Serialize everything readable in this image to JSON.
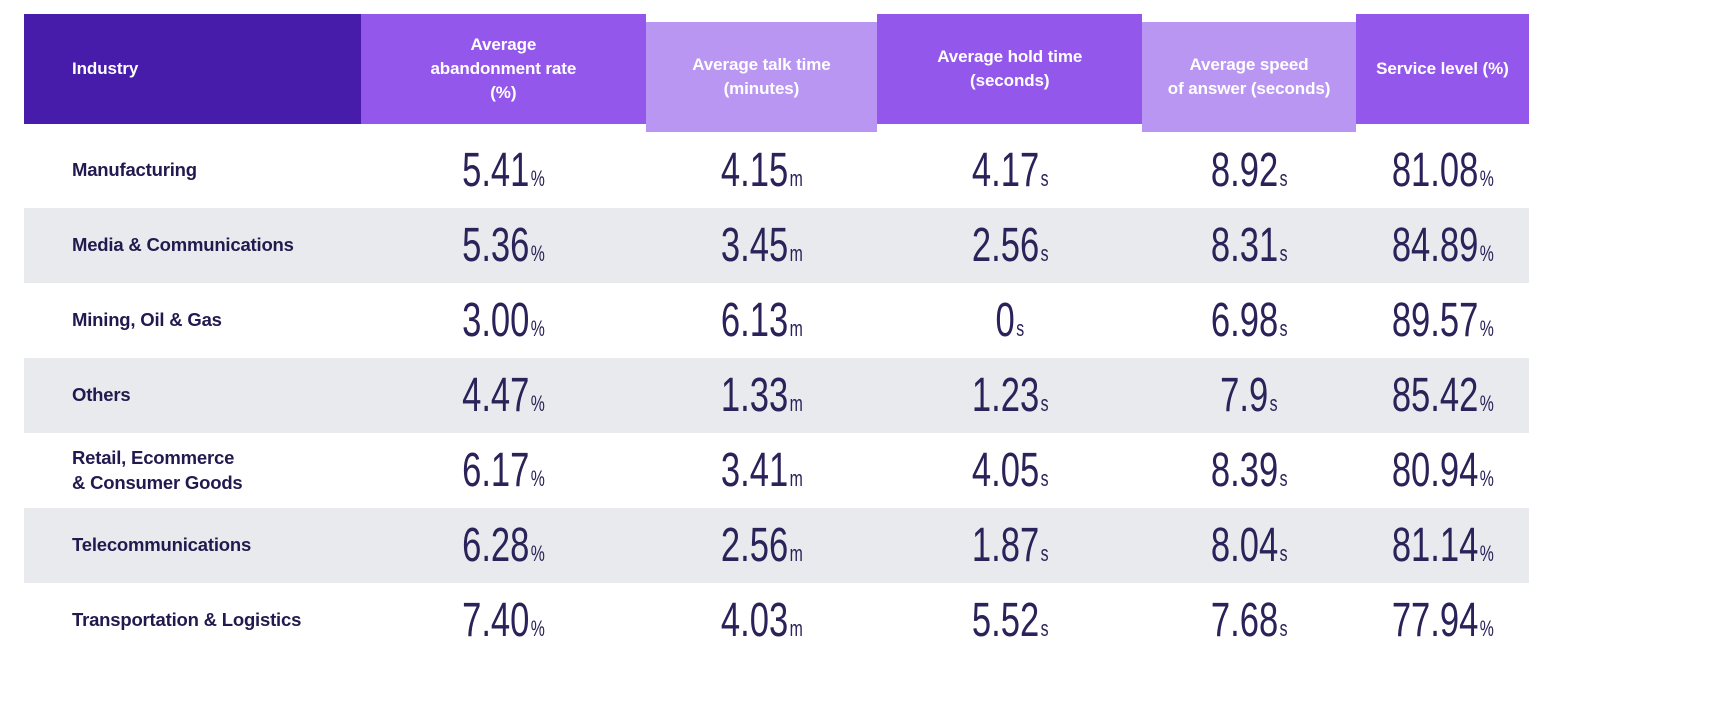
{
  "table": {
    "columns": [
      {
        "label": "Industry",
        "shade": "dark",
        "unit": ""
      },
      {
        "label": "Average\nabandonment rate\n(%)",
        "shade": "medium",
        "unit": "%"
      },
      {
        "label": "Average talk time\n(minutes)",
        "shade": "light",
        "unit": "m"
      },
      {
        "label": "Average hold time\n(seconds)",
        "shade": "medium",
        "unit": "s"
      },
      {
        "label": "Average speed\nof answer (seconds)",
        "shade": "light",
        "unit": "s"
      },
      {
        "label": "Service level (%)",
        "shade": "medium",
        "unit": "%"
      }
    ],
    "rows": [
      {
        "industry": "Manufacturing",
        "values": [
          "5.41",
          "4.15",
          "4.17",
          "8.92",
          "81.08"
        ]
      },
      {
        "industry": "Media & Communications",
        "values": [
          "5.36",
          "3.45",
          "2.56",
          "8.31",
          "84.89"
        ]
      },
      {
        "industry": "Mining, Oil & Gas",
        "values": [
          "3.00",
          "6.13",
          "0",
          "6.98",
          "89.57"
        ]
      },
      {
        "industry": "Others",
        "values": [
          "4.47",
          "1.33",
          "1.23",
          "7.9",
          "85.42"
        ]
      },
      {
        "industry": "Retail, Ecommerce\n& Consumer Goods",
        "values": [
          "6.17",
          "3.41",
          "4.05",
          "8.39",
          "80.94"
        ]
      },
      {
        "industry": "Telecommunications",
        "values": [
          "6.28",
          "2.56",
          "1.87",
          "8.04",
          "81.14"
        ]
      },
      {
        "industry": "Transportation & Logistics",
        "values": [
          "7.40",
          "4.03",
          "5.52",
          "7.68",
          "77.94"
        ]
      }
    ]
  },
  "chart_data": {
    "type": "table",
    "columns": [
      "Industry",
      "Average abandonment rate (%)",
      "Average talk time (minutes)",
      "Average hold time (seconds)",
      "Average speed of answer (seconds)",
      "Service level (%)"
    ],
    "units": [
      "",
      "%",
      "m",
      "s",
      "s",
      "%"
    ],
    "rows": [
      [
        "Manufacturing",
        5.41,
        4.15,
        4.17,
        8.92,
        81.08
      ],
      [
        "Media & Communications",
        5.36,
        3.45,
        2.56,
        8.31,
        84.89
      ],
      [
        "Mining, Oil & Gas",
        3.0,
        6.13,
        0,
        6.98,
        89.57
      ],
      [
        "Others",
        4.47,
        1.33,
        1.23,
        7.9,
        85.42
      ],
      [
        "Retail, Ecommerce & Consumer Goods",
        6.17,
        3.41,
        4.05,
        8.39,
        80.94
      ],
      [
        "Telecommunications",
        6.28,
        2.56,
        1.87,
        8.04,
        81.14
      ],
      [
        "Transportation & Logistics",
        7.4,
        4.03,
        5.52,
        7.68,
        77.94
      ]
    ],
    "layout": {
      "striped_rows": "even rows gray",
      "header_shades": [
        "dark",
        "medium",
        "light",
        "medium",
        "light",
        "medium"
      ]
    }
  },
  "colors": {
    "header_dark": "#481caa",
    "header_medium": "#9457ec",
    "header_light": "#b896f2",
    "row_stripe": "#e9eaee",
    "text_navy": "#221a4e",
    "value_navy": "#2a2258"
  }
}
